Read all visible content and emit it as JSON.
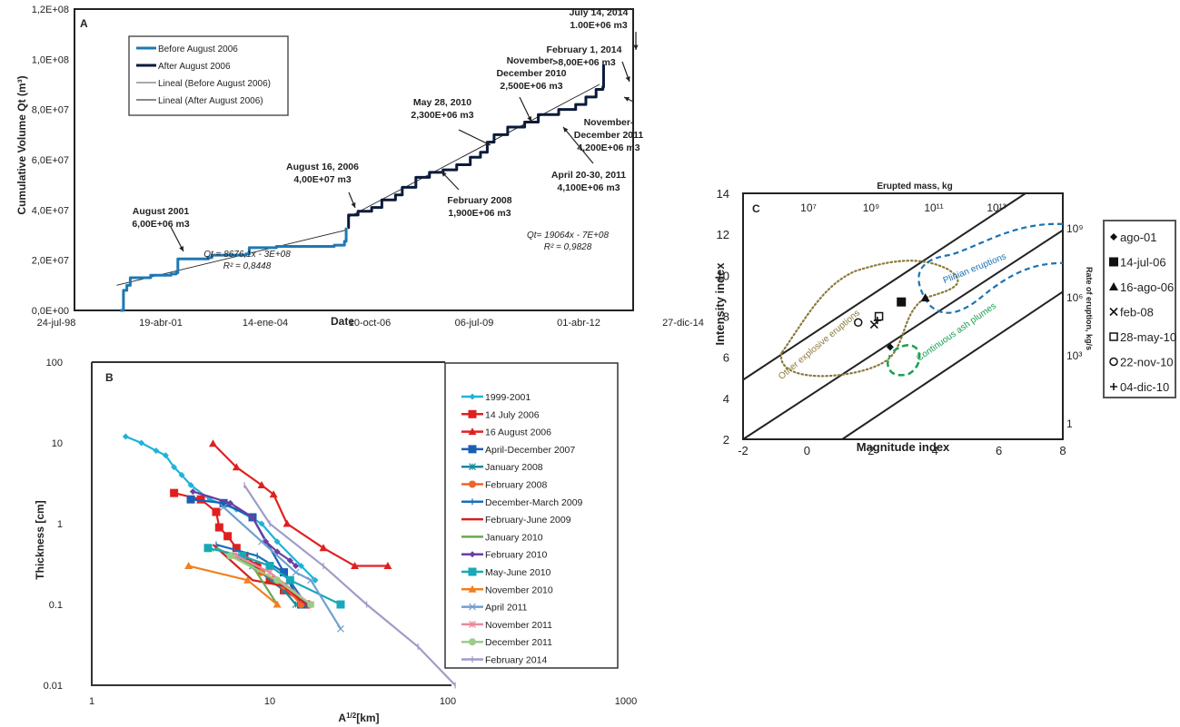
{
  "chart_data": [
    {
      "panel": "A",
      "type": "line",
      "xlabel": "Date",
      "ylabel": "Cumulative Volume Qt (m³)",
      "x_ticks": [
        "24-jul-98",
        "19-abr-01",
        "14-ene-04",
        "10-oct-06",
        "06-jul-09",
        "01-abr-12",
        "27-dic-14"
      ],
      "y_ticks": [
        "0,0E+00",
        "2,0E+07",
        "4,0E+07",
        "6,0E+07",
        "8,0E+07",
        "1,0E+08",
        "1,2E+08"
      ],
      "ylim": [
        0,
        120000000
      ],
      "xlim_years": [
        1998.56,
        2014.99
      ],
      "legend": [
        "Before August 2006",
        "After August 2006",
        "Lineal (Before August 2006)",
        "Lineal (After August 2006)"
      ],
      "legend_position": "top-left",
      "series": [
        {
          "name": "Before August 2006",
          "color": "#1f78b4",
          "points": [
            [
              1999.9,
              0
            ],
            [
              2000.0,
              8000000
            ],
            [
              2000.1,
              10000000
            ],
            [
              2000.2,
              13000000
            ],
            [
              2000.8,
              14000000
            ],
            [
              2001.4,
              14500000
            ],
            [
              2001.55,
              15000000
            ],
            [
              2001.6,
              20500000
            ],
            [
              2002.5,
              21000000
            ],
            [
              2002.6,
              22000000
            ],
            [
              2003.6,
              22500000
            ],
            [
              2003.7,
              25000000
            ],
            [
              2004.5,
              25500000
            ],
            [
              2005.5,
              25500000
            ],
            [
              2006.2,
              26000000
            ],
            [
              2006.5,
              27500000
            ],
            [
              2006.55,
              33000000
            ]
          ]
        },
        {
          "name": "After August 2006",
          "color": "#0b1a3a",
          "points": [
            [
              2006.6,
              33000000
            ],
            [
              2006.62,
              38000000
            ],
            [
              2006.9,
              39500000
            ],
            [
              2007.3,
              41000000
            ],
            [
              2007.6,
              44000000
            ],
            [
              2008.0,
              46000000
            ],
            [
              2008.2,
              49000000
            ],
            [
              2008.6,
              53000000
            ],
            [
              2009.0,
              55000000
            ],
            [
              2009.4,
              56000000
            ],
            [
              2009.8,
              58000000
            ],
            [
              2010.2,
              61000000
            ],
            [
              2010.5,
              63000000
            ],
            [
              2010.7,
              67000000
            ],
            [
              2010.9,
              70000000
            ],
            [
              2011.3,
              73000000
            ],
            [
              2011.8,
              75000000
            ],
            [
              2012.2,
              78000000
            ],
            [
              2012.8,
              80000000
            ],
            [
              2013.3,
              82000000
            ],
            [
              2013.6,
              85000000
            ],
            [
              2013.9,
              88000000
            ],
            [
              2014.1,
              89000000
            ],
            [
              2014.12,
              98000000
            ]
          ]
        }
      ],
      "trendlines": [
        {
          "name": "Lineal (Before August 2006)",
          "equation": "Qt = 8676,1x  - 3E+08",
          "r2": "R² = 0,8448",
          "from": [
            1999.8,
            10000000
          ],
          "to": [
            2006.55,
            32000000
          ]
        },
        {
          "name": "Lineal (After August 2006)",
          "equation": "Qt= 19064x  - 7E+08",
          "r2": "R² = 0,9828",
          "from": [
            2006.6,
            37000000
          ],
          "to": [
            2014.0,
            90000000
          ]
        }
      ],
      "annotations": [
        {
          "lines": [
            "August 2001",
            "6,00E+06 m3"
          ]
        },
        {
          "lines": [
            "August 16, 2006",
            "4,00E+07 m3"
          ]
        },
        {
          "lines": [
            "February 2008",
            "1,900E+06 m3"
          ]
        },
        {
          "lines": [
            "May 28, 2010",
            "2,300E+06 m3"
          ]
        },
        {
          "lines": [
            "November-",
            "December 2010",
            "2,500E+06 m3"
          ]
        },
        {
          "lines": [
            "April 20-30, 2011",
            "4,100E+06 m3"
          ]
        },
        {
          "lines": [
            "November-",
            "December 2011",
            "4,200E+06 m3"
          ]
        },
        {
          "lines": [
            "February 1, 2014",
            ">8,00E+06 m3"
          ]
        },
        {
          "lines": [
            "July 14, 2014",
            "1.00E+06 m3"
          ]
        }
      ]
    },
    {
      "panel": "B",
      "type": "line",
      "xscale": "log",
      "yscale": "log",
      "xlabel": "A1/2[km]",
      "ylabel": "Thickness [cm]",
      "x_ticks": [
        "1",
        "10",
        "100",
        "1000"
      ],
      "y_ticks": [
        "0.01",
        "0.1",
        "1",
        "10",
        "100"
      ],
      "xlim": [
        1,
        1000
      ],
      "ylim": [
        0.01,
        100
      ],
      "legend_position": "right",
      "series": [
        {
          "name": "1999-2001",
          "color": "#1fb3d9",
          "marker": "diamond",
          "points": [
            [
              1.55,
              12
            ],
            [
              1.9,
              10
            ],
            [
              2.3,
              8
            ],
            [
              2.6,
              7
            ],
            [
              2.9,
              5
            ],
            [
              3.2,
              4
            ],
            [
              3.6,
              3
            ],
            [
              4.6,
              2
            ],
            [
              6.5,
              1.5
            ],
            [
              9,
              1
            ],
            [
              11,
              0.6
            ],
            [
              15,
              0.3
            ],
            [
              18,
              0.2
            ]
          ]
        },
        {
          "name": "14 July 2006",
          "color": "#e02020",
          "marker": "square",
          "points": [
            [
              2.9,
              2.4
            ],
            [
              4.1,
              2.0
            ],
            [
              5.0,
              1.4
            ],
            [
              5.2,
              0.9
            ],
            [
              5.8,
              0.7
            ],
            [
              6.5,
              0.5
            ],
            [
              7.2,
              0.4
            ],
            [
              8.5,
              0.3
            ],
            [
              10,
              0.2
            ],
            [
              12,
              0.15
            ],
            [
              16,
              0.1
            ]
          ]
        },
        {
          "name": "16 August 2006",
          "color": "#e02020",
          "marker": "triangle",
          "points": [
            [
              4.8,
              9.8
            ],
            [
              6.5,
              5
            ],
            [
              9,
              3
            ],
            [
              10.5,
              2.3
            ],
            [
              12.5,
              1.0
            ],
            [
              20,
              0.5
            ],
            [
              30,
              0.3
            ],
            [
              46,
              0.3
            ]
          ]
        },
        {
          "name": "April-December 2007",
          "color": "#1a5fb4",
          "marker": "square",
          "points": [
            [
              3.6,
              2.0
            ],
            [
              5.5,
              1.8
            ],
            [
              8,
              1.2
            ],
            [
              12,
              0.25
            ],
            [
              15,
              0.1
            ]
          ]
        },
        {
          "name": "January 2008",
          "color": "#138a9e",
          "marker": "asterisk",
          "points": [
            [
              5,
              0.5
            ],
            [
              8,
              0.3
            ],
            [
              12,
              0.15
            ],
            [
              14,
              0.1
            ]
          ]
        },
        {
          "name": "February 2008",
          "color": "#f0642a",
          "marker": "circle",
          "points": [
            [
              6,
              0.4
            ],
            [
              9,
              0.25
            ],
            [
              12,
              0.17
            ],
            [
              15,
              0.1
            ]
          ]
        },
        {
          "name": "December-March 2009",
          "color": "#1a6db8",
          "marker": "plus",
          "points": [
            [
              5,
              0.55
            ],
            [
              8.5,
              0.4
            ],
            [
              12,
              0.25
            ],
            [
              16,
              0.1
            ]
          ]
        },
        {
          "name": "February-June 2009",
          "color": "#d42020",
          "marker": "none",
          "points": [
            [
              4.8,
              0.55
            ],
            [
              8,
              0.2
            ],
            [
              12,
              0.17
            ],
            [
              16,
              0.1
            ]
          ]
        },
        {
          "name": "January 2010",
          "color": "#6aa84f",
          "marker": "none",
          "points": [
            [
              5,
              0.5
            ],
            [
              8,
              0.3
            ],
            [
              11,
              0.1
            ]
          ]
        },
        {
          "name": "February 2010",
          "color": "#6a3fa0",
          "marker": "diamond",
          "points": [
            [
              3.7,
              2.5
            ],
            [
              6,
              1.8
            ],
            [
              8,
              1.2
            ],
            [
              9.5,
              0.6
            ],
            [
              11,
              0.45
            ],
            [
              13,
              0.35
            ],
            [
              14,
              0.3
            ]
          ]
        },
        {
          "name": "May-June 2010",
          "color": "#17a9b8",
          "marker": "square",
          "points": [
            [
              4.5,
              0.5
            ],
            [
              7,
              0.4
            ],
            [
              10,
              0.3
            ],
            [
              13,
              0.2
            ],
            [
              25,
              0.1
            ]
          ]
        },
        {
          "name": "November 2010",
          "color": "#f08020",
          "marker": "triangle",
          "points": [
            [
              3.5,
              0.3
            ],
            [
              7.5,
              0.2
            ],
            [
              11,
              0.1
            ]
          ]
        },
        {
          "name": "April 2011",
          "color": "#6fa0d0",
          "marker": "cross",
          "points": [
            [
              5.5,
              1.6
            ],
            [
              9,
              0.6
            ],
            [
              14,
              0.25
            ],
            [
              17,
              0.2
            ],
            [
              25,
              0.05
            ]
          ]
        },
        {
          "name": "November 2011",
          "color": "#e88a9a",
          "marker": "asterisk",
          "points": [
            [
              6.5,
              0.4
            ],
            [
              10,
              0.25
            ],
            [
              17,
              0.1
            ]
          ]
        },
        {
          "name": "December 2011",
          "color": "#9acd8a",
          "marker": "circle",
          "points": [
            [
              6,
              0.4
            ],
            [
              11,
              0.2
            ],
            [
              17,
              0.1
            ]
          ]
        },
        {
          "name": "February 2014",
          "color": "#a09cc8",
          "marker": "plus",
          "points": [
            [
              7.2,
              3
            ],
            [
              10,
              1
            ],
            [
              20,
              0.3
            ],
            [
              35,
              0.1
            ],
            [
              68,
              0.03
            ],
            [
              110,
              0.01
            ]
          ]
        }
      ]
    },
    {
      "panel": "C",
      "type": "scatter",
      "xlabel": "Magnitude index",
      "ylabel": "Intensity index",
      "top_axis_label": "Erupted mass, kg",
      "top_ticks": [
        "10⁷",
        "10⁹",
        "10¹¹",
        "10¹³"
      ],
      "right_axis_label": "Rate of eruption, kg/s",
      "right_ticks": [
        "1",
        "10³",
        "10⁶",
        "10⁹"
      ],
      "x_ticks": [
        "-2",
        "0",
        "2",
        "4",
        "6",
        "8"
      ],
      "y_ticks": [
        "2",
        "4",
        "6",
        "8",
        "10",
        "12",
        "14"
      ],
      "xlim": [
        -2,
        8
      ],
      "ylim": [
        2,
        14
      ],
      "regions": [
        {
          "name": "Other explosive eruptions",
          "color": "#8b7a3a",
          "style": "dotted"
        },
        {
          "name": "Plinian eruptions",
          "color": "#1a73b4",
          "style": "dashed"
        },
        {
          "name": "Continuous ash plumes",
          "color": "#1aa050",
          "style": "dashed"
        }
      ],
      "legend_position": "right",
      "points": [
        {
          "label": "ago-01",
          "marker": "diamond",
          "x": 2.6,
          "y": 6.5
        },
        {
          "label": "14-jul-06",
          "marker": "filled-square",
          "x": 2.95,
          "y": 8.7
        },
        {
          "label": "16-ago-06",
          "marker": "filled-triangle",
          "x": 3.7,
          "y": 8.9
        },
        {
          "label": "feb-08",
          "marker": "cross",
          "x": 2.1,
          "y": 7.6
        },
        {
          "label": "28-may-10",
          "marker": "open-square",
          "x": 2.25,
          "y": 8.0
        },
        {
          "label": "22-nov-10",
          "marker": "open-circle",
          "x": 1.6,
          "y": 7.7
        },
        {
          "label": "04-dic-10",
          "marker": "plus",
          "x": 2.2,
          "y": 7.8
        }
      ]
    }
  ]
}
